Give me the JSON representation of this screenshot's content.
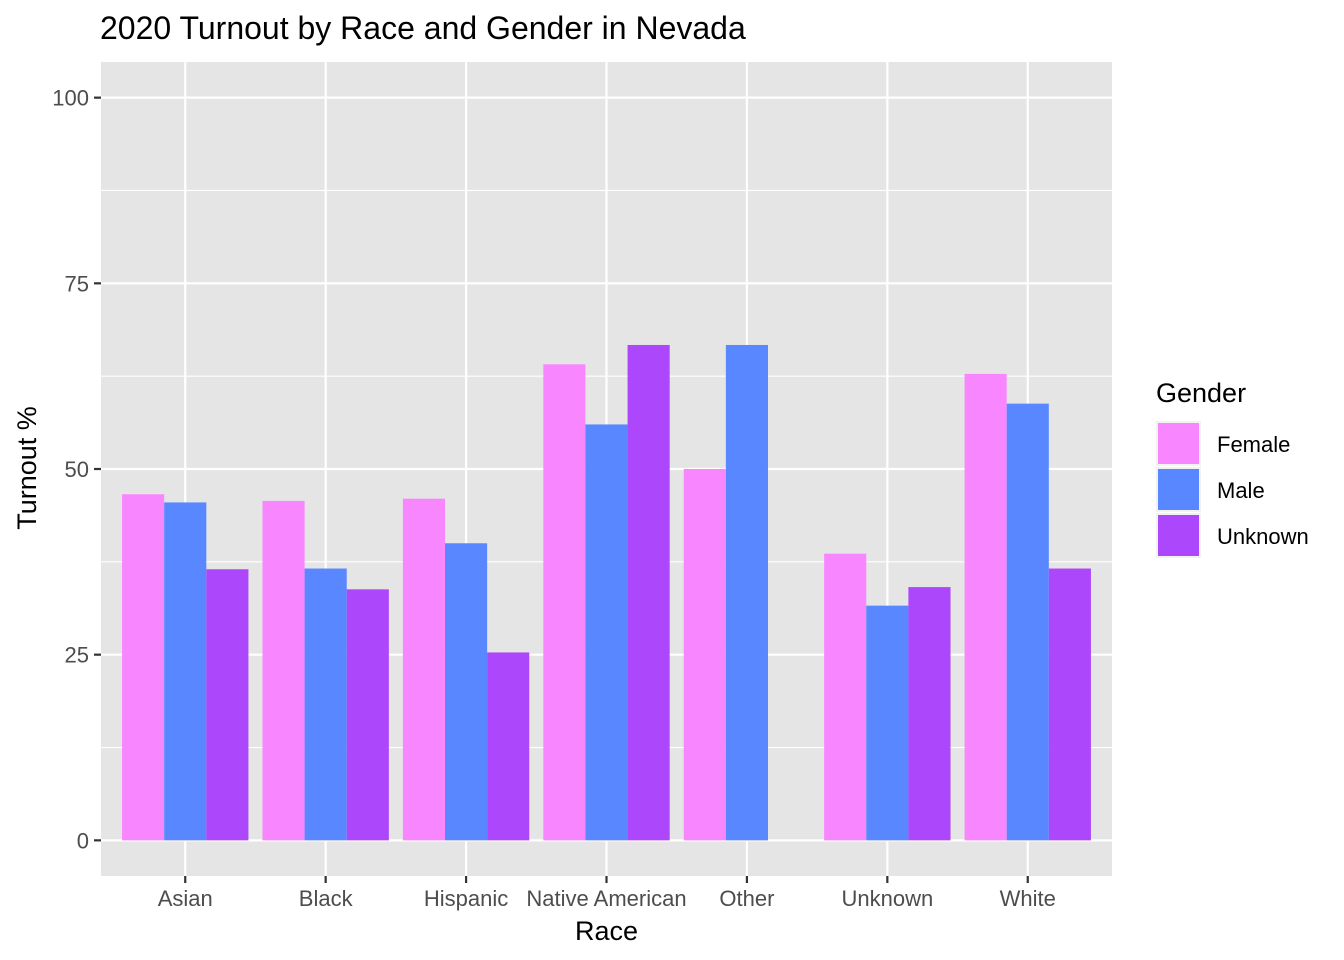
{
  "chart_data": {
    "type": "bar",
    "title": "2020 Turnout by Race and Gender in Nevada",
    "xlabel": "Race",
    "ylabel": "Turnout %",
    "categories": [
      "Asian",
      "Black",
      "Hispanic",
      "Native American",
      "Other",
      "Unknown",
      "White"
    ],
    "series": [
      {
        "name": "Female",
        "color": "#F887FF",
        "values": [
          46.6,
          45.7,
          46.0,
          64.1,
          50.0,
          38.6,
          62.8
        ]
      },
      {
        "name": "Male",
        "color": "#5887FF",
        "values": [
          45.5,
          36.6,
          40.0,
          56.0,
          66.7,
          31.6,
          58.8
        ]
      },
      {
        "name": "Unknown",
        "color": "#AC47FC",
        "values": [
          36.5,
          33.8,
          25.3,
          66.7,
          null,
          34.1,
          36.6
        ]
      }
    ],
    "y_ticks": [
      0,
      25,
      50,
      75,
      100
    ],
    "ylim": [
      -4.8,
      104.8
    ],
    "grid": true,
    "legend": {
      "title": "Gender",
      "position": "right"
    },
    "panel_background": "#E5E5E5"
  }
}
